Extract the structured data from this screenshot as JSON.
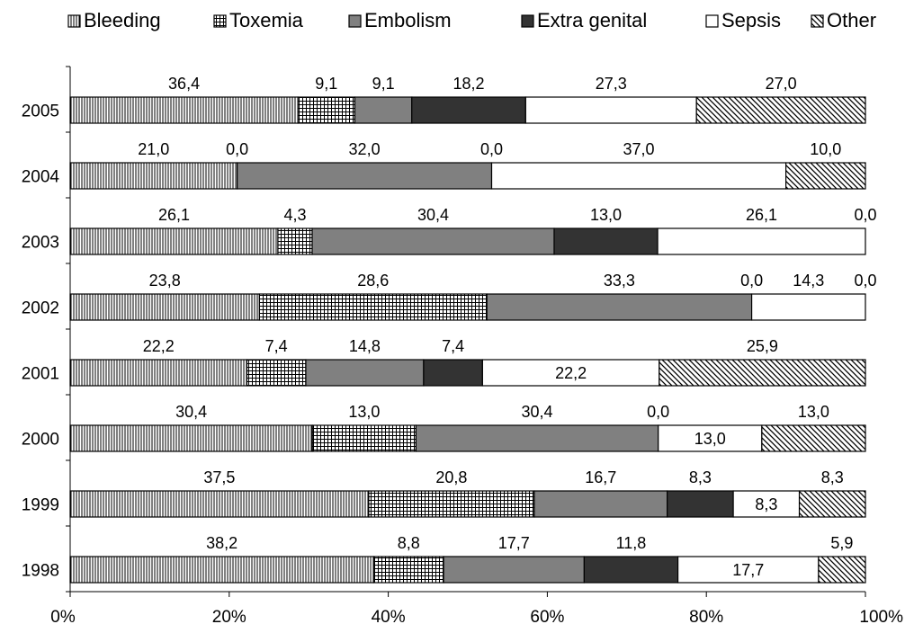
{
  "chart_data": {
    "type": "bar",
    "orientation": "horizontal",
    "stacked": "percent",
    "categories": [
      "2005",
      "2004",
      "2003",
      "2002",
      "2001",
      "2000",
      "1999",
      "1998"
    ],
    "series": [
      {
        "name": "Bleeding",
        "pattern": "vertical-lines",
        "values": [
          36.4,
          21.0,
          26.1,
          23.8,
          22.2,
          30.4,
          37.5,
          38.2
        ]
      },
      {
        "name": "Toxemia",
        "pattern": "grid",
        "values": [
          9.1,
          0.0,
          4.3,
          28.6,
          7.4,
          13.0,
          20.8,
          8.8
        ]
      },
      {
        "name": "Embolism",
        "color": "#808080",
        "values": [
          9.1,
          32.0,
          30.4,
          33.3,
          14.8,
          30.4,
          16.7,
          17.7
        ]
      },
      {
        "name": "Extra genital",
        "color": "#333333",
        "values": [
          18.2,
          0.0,
          13.0,
          0.0,
          7.4,
          0.0,
          8.3,
          11.8
        ]
      },
      {
        "name": "Sepsis",
        "color": "#ffffff",
        "values": [
          27.3,
          37.0,
          26.1,
          14.3,
          22.2,
          13.0,
          8.3,
          17.7
        ]
      },
      {
        "name": "Other",
        "pattern": "diagonal-lines",
        "values": [
          27.0,
          10.0,
          0.0,
          0.0,
          25.9,
          13.0,
          8.3,
          5.9
        ]
      }
    ],
    "labels": [
      [
        "36,4",
        "9,1",
        "9,1",
        "18,2",
        "27,3",
        "27,0"
      ],
      [
        "21,0",
        "0,0",
        "32,0",
        "0,0",
        "37,0",
        "10,0"
      ],
      [
        "26,1",
        "4,3",
        "30,4",
        "13,0",
        "26,1",
        "0,0"
      ],
      [
        "23,8",
        "28,6",
        "33,3",
        "0,0",
        "14,3",
        "0,0"
      ],
      [
        "22,2",
        "7,4",
        "14,8",
        "7,4",
        "22,2",
        "25,9"
      ],
      [
        "30,4",
        "13,0",
        "30,4",
        "0,0",
        "13,0",
        "13,0"
      ],
      [
        "37,5",
        "20,8",
        "16,7",
        "8,3",
        "8,3",
        "8,3"
      ],
      [
        "38,2",
        "8,8",
        "17,7",
        "11,8",
        "17,7",
        "5,9"
      ]
    ],
    "x_ticks": [
      "0%",
      "20%",
      "40%",
      "60%",
      "80%",
      "100%"
    ],
    "xlim": [
      0,
      100
    ],
    "legend_position": "top",
    "grid": false
  }
}
